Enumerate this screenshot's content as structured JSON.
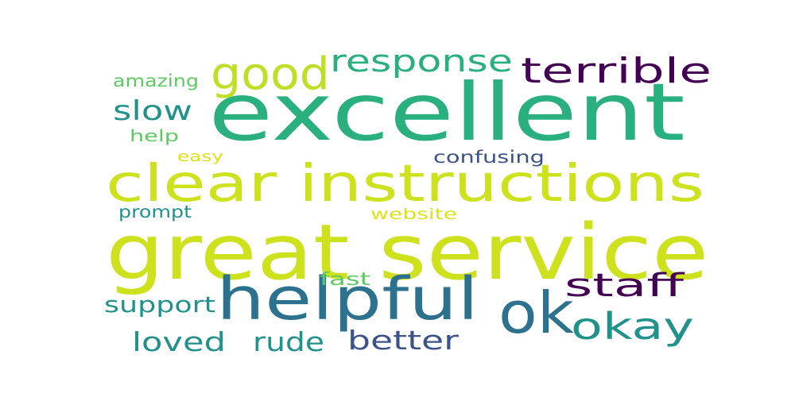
{
  "words": [
    {
      "text": "excellent",
      "color": "#2ab07f"
    },
    {
      "text": "great service",
      "color": "#cde11d"
    },
    {
      "text": "clear instructions",
      "color": "#cde11d"
    },
    {
      "text": "helpful",
      "color": "#2c728e"
    },
    {
      "text": "ok",
      "color": "#2c728e"
    },
    {
      "text": "okay",
      "color": "#21918c"
    },
    {
      "text": "good",
      "color": "#bddf26"
    },
    {
      "text": "response",
      "color": "#2ab07f"
    },
    {
      "text": "terrible",
      "color": "#440154"
    },
    {
      "text": "staff",
      "color": "#440154"
    },
    {
      "text": "slow",
      "color": "#21918c"
    },
    {
      "text": "loved",
      "color": "#21918c"
    },
    {
      "text": "rude",
      "color": "#21918c"
    },
    {
      "text": "better",
      "color": "#3b528b"
    },
    {
      "text": "support",
      "color": "#21918c"
    },
    {
      "text": "amazing",
      "color": "#5ec962"
    },
    {
      "text": "help",
      "color": "#5ec962"
    },
    {
      "text": "easy",
      "color": "#dde318"
    },
    {
      "text": "confusing",
      "color": "#3b528b"
    },
    {
      "text": "prompt",
      "color": "#21918c"
    },
    {
      "text": "website",
      "color": "#dde318"
    },
    {
      "text": "fast",
      "color": "#5ec962"
    }
  ]
}
